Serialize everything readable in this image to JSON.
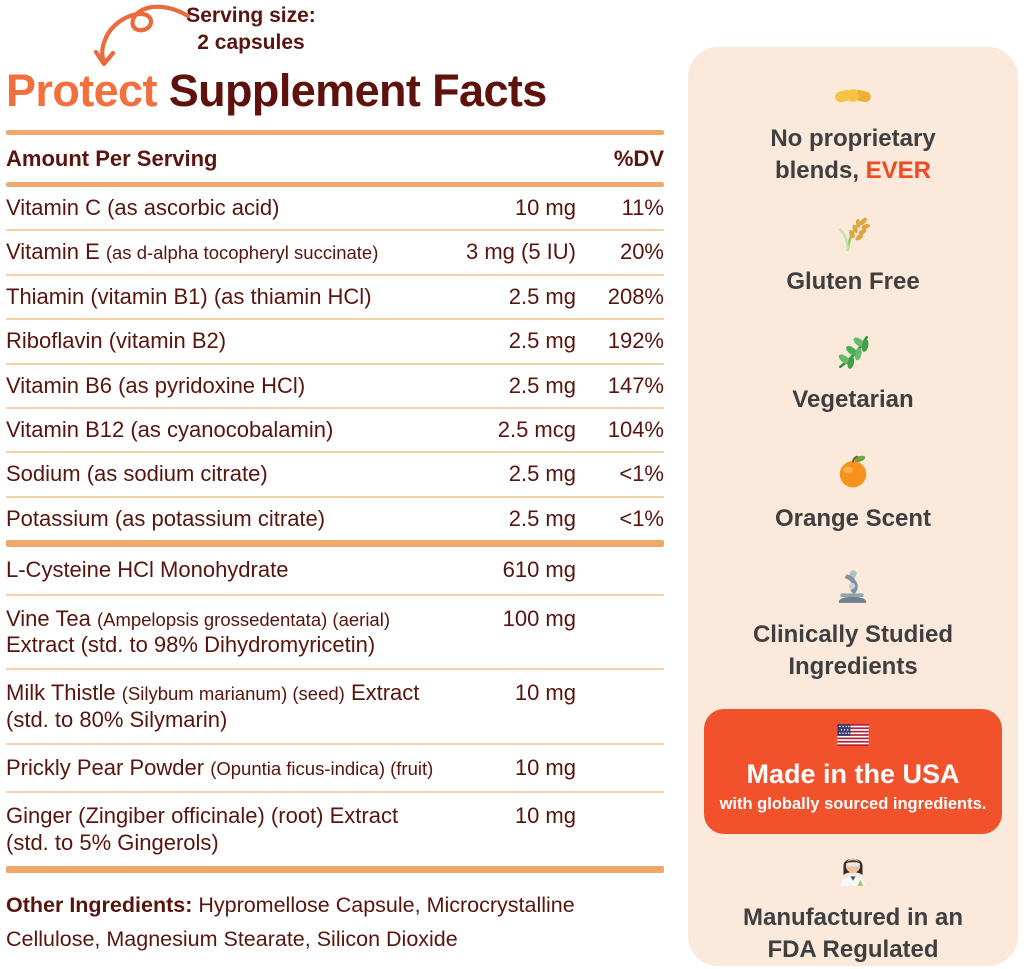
{
  "label": {
    "serving_size_line1": "Serving size:",
    "serving_size_line2": "2 capsules",
    "title_accent": "Protect",
    "title_rest": " Supplement Facts"
  },
  "facts": {
    "header": {
      "amount_label": "Amount Per Serving",
      "dv_label": "%DV"
    },
    "section1": [
      {
        "lines": [
          [
            {
              "t": "Vitamin C (as ascorbic acid)",
              "sm": false
            }
          ]
        ],
        "amount": "10 mg",
        "dv": "11%"
      },
      {
        "lines": [
          [
            {
              "t": "Vitamin E ",
              "sm": false
            },
            {
              "t": "(as d-alpha tocopheryl succinate)",
              "sm": true
            }
          ]
        ],
        "amount": "3 mg (5 IU)",
        "dv": "20%"
      },
      {
        "lines": [
          [
            {
              "t": "Thiamin (vitamin B1) (as thiamin HCl)",
              "sm": false
            }
          ]
        ],
        "amount": "2.5 mg",
        "dv": "208%"
      },
      {
        "lines": [
          [
            {
              "t": "Riboflavin (vitamin B2)",
              "sm": false
            }
          ]
        ],
        "amount": "2.5 mg",
        "dv": "192%"
      },
      {
        "lines": [
          [
            {
              "t": "Vitamin B6 (as pyridoxine HCl)",
              "sm": false
            }
          ]
        ],
        "amount": "2.5 mg",
        "dv": "147%"
      },
      {
        "lines": [
          [
            {
              "t": "Vitamin B12 (as cyanocobalamin)",
              "sm": false
            }
          ]
        ],
        "amount": "2.5 mcg",
        "dv": "104%"
      },
      {
        "lines": [
          [
            {
              "t": "Sodium (as sodium citrate)",
              "sm": false
            }
          ]
        ],
        "amount": "2.5 mg",
        "dv": "<1%"
      },
      {
        "lines": [
          [
            {
              "t": "Potassium (as potassium citrate)",
              "sm": false
            }
          ]
        ],
        "amount": "2.5 mg",
        "dv": "<1%"
      }
    ],
    "section2": [
      {
        "lines": [
          [
            {
              "t": "L-Cysteine HCl Monohydrate",
              "sm": false
            }
          ]
        ],
        "amount": "610 mg",
        "dv": ""
      },
      {
        "lines": [
          [
            {
              "t": "Vine Tea ",
              "sm": false
            },
            {
              "t": "(Ampelopsis grossedentata) (aerial)",
              "sm": true
            }
          ],
          [
            {
              "t": "Extract (std. to 98% Dihydromyricetin)",
              "sm": false
            }
          ]
        ],
        "amount": "100 mg",
        "dv": ""
      },
      {
        "lines": [
          [
            {
              "t": "Milk Thistle ",
              "sm": false
            },
            {
              "t": "(Silybum marianum) (seed)",
              "sm": true
            },
            {
              "t": " Extract",
              "sm": false
            }
          ],
          [
            {
              "t": "(std. to 80% Silymarin)",
              "sm": false
            }
          ]
        ],
        "amount": "10 mg",
        "dv": ""
      },
      {
        "lines": [
          [
            {
              "t": "Prickly Pear Powder ",
              "sm": false
            },
            {
              "t": "(Opuntia ficus-indica) (fruit)",
              "sm": true
            }
          ]
        ],
        "amount": "10 mg",
        "dv": ""
      },
      {
        "lines": [
          [
            {
              "t": "Ginger (Zingiber officinale) (root) Extract",
              "sm": false
            }
          ],
          [
            {
              "t": "(std. to 5% Gingerols)",
              "sm": false
            }
          ]
        ],
        "amount": "10 mg",
        "dv": ""
      }
    ],
    "other_ingredients": {
      "label": "Other Ingredients:",
      "text": " Hypromellose Capsule, Microcrystalline Cellulose, Magnesium Stearate, Silicon Dioxide"
    }
  },
  "sidebar": {
    "badges": [
      {
        "icon": "handshake-icon",
        "line1": "No proprietary",
        "line2_pre": "blends, ",
        "line2_accent": "EVER"
      },
      {
        "icon": "rice-icon",
        "text": "Gluten Free"
      },
      {
        "icon": "herb-icon",
        "text": "Vegetarian"
      },
      {
        "icon": "tangerine-icon",
        "text": "Orange Scent"
      },
      {
        "icon": "microscope-icon",
        "text": "Clinically Studied Ingredients"
      }
    ],
    "usa_card": {
      "icon": "us-flag-icon",
      "title": "Made in the USA",
      "subtitle": "with globally sourced ingredients."
    },
    "fda_badge": {
      "icon": "woman-scientist-icon",
      "text": "Manufactured in an FDA Regulated Facility"
    }
  },
  "colors": {
    "accent_orange": "#F2703D",
    "deep_maroon": "#5A150F",
    "card_orange": "#F1512B",
    "ever_orange": "#F04A22",
    "sidebar_bg": "#FBE9DC",
    "sidebar_text": "#3F3F41",
    "rule_orange": "#F2A96D",
    "separator_light": "#F5D2A8"
  }
}
